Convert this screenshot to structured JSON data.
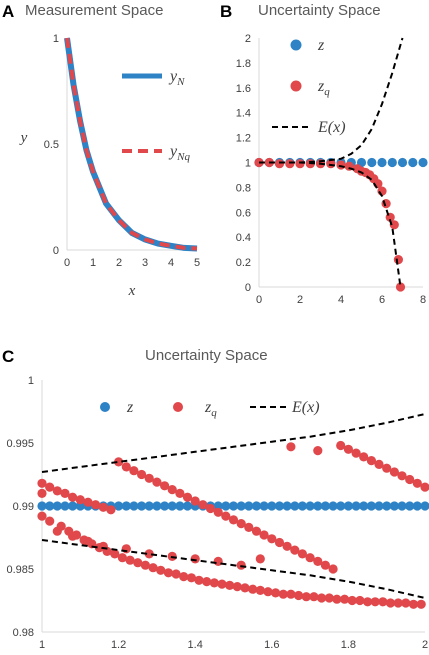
{
  "panels": {
    "A": {
      "label": "A",
      "title": "Measurement Space"
    },
    "B": {
      "label": "B",
      "title": "Uncertainty Space"
    },
    "C": {
      "label": "C",
      "title": "Uncertainty Space"
    }
  },
  "colors": {
    "z": "#2e83c6",
    "zq": "#e0484b",
    "E": "#000000"
  },
  "chart_data": [
    {
      "id": "A",
      "type": "line",
      "title": "Measurement Space",
      "xlabel": "x",
      "ylabel": "y",
      "xlim": [
        0,
        5
      ],
      "ylim": [
        0,
        1
      ],
      "xticks": [
        "0",
        "1",
        "2",
        "3",
        "4",
        "5"
      ],
      "yticks": [
        "0",
        "0.5",
        "1"
      ],
      "legend": "right",
      "series": [
        {
          "name": "y_N",
          "legend_main": "y",
          "legend_sub": "N",
          "style": "solid",
          "color": "#2e83c6",
          "x": [
            0,
            0.25,
            0.5,
            0.75,
            1,
            1.5,
            2,
            2.5,
            3,
            3.5,
            4,
            4.5,
            5
          ],
          "y": [
            1,
            0.78,
            0.61,
            0.47,
            0.37,
            0.22,
            0.14,
            0.08,
            0.05,
            0.03,
            0.02,
            0.01,
            0.007
          ]
        },
        {
          "name": "y_Nq",
          "legend_main": "y",
          "legend_sub": "Nq",
          "style": "dashed",
          "color": "#e0484b",
          "x": [
            0,
            0.25,
            0.5,
            0.75,
            1,
            1.5,
            2,
            2.5,
            3,
            3.5,
            4,
            4.5,
            5
          ],
          "y": [
            1,
            0.78,
            0.61,
            0.47,
            0.37,
            0.22,
            0.14,
            0.08,
            0.05,
            0.03,
            0.02,
            0.01,
            0.007
          ]
        }
      ]
    },
    {
      "id": "B",
      "type": "scatter",
      "title": "Uncertainty Space",
      "xlim": [
        0,
        8
      ],
      "ylim": [
        0,
        2
      ],
      "xticks": [
        "0",
        "2",
        "4",
        "6",
        "8"
      ],
      "yticks": [
        "0",
        "0.2",
        "0.4",
        "0.6",
        "0.8",
        "1",
        "1.2",
        "1.4",
        "1.6",
        "1.8",
        "2"
      ],
      "legend": "left",
      "series": [
        {
          "name": "z",
          "legend_main": "z",
          "legend_sub": "",
          "style": "marker",
          "color": "#2e83c6",
          "x": [
            0,
            0.5,
            1,
            1.5,
            2,
            2.5,
            3,
            3.5,
            4,
            4.5,
            5,
            5.5,
            6,
            6.5,
            7,
            7.5,
            8
          ],
          "y": [
            1,
            1,
            1,
            1,
            1,
            1,
            1,
            1,
            1,
            1,
            1,
            1,
            1,
            1,
            1,
            1,
            1
          ]
        },
        {
          "name": "z_q",
          "legend_main": "z",
          "legend_sub": "q",
          "style": "marker",
          "color": "#e0484b",
          "x": [
            0,
            0.5,
            1,
            1.5,
            2,
            2.5,
            3,
            3.5,
            4,
            4.4,
            4.8,
            5,
            5.2,
            5.4,
            5.6,
            5.8,
            6.0,
            6.2,
            6.4,
            6.6,
            6.8,
            6.9
          ],
          "y": [
            1,
            1,
            0.99,
            0.99,
            0.99,
            0.99,
            0.99,
            0.99,
            0.98,
            0.97,
            0.95,
            0.93,
            0.92,
            0.9,
            0.87,
            0.83,
            0.77,
            0.67,
            0.56,
            0.5,
            0.22,
            0.0
          ]
        },
        {
          "name": "E(x)",
          "legend_main": "E(x)",
          "legend_sub": "",
          "style": "dashed",
          "color": "#000000",
          "upper_x": [
            0,
            2,
            3,
            4,
            4.5,
            5,
            5.5,
            6,
            6.5,
            7
          ],
          "upper_y": [
            1.0,
            1.0,
            1.01,
            1.03,
            1.07,
            1.14,
            1.27,
            1.47,
            1.72,
            2.0
          ],
          "lower_x": [
            0,
            2,
            3,
            4,
            4.5,
            5,
            5.5,
            6,
            6.5,
            6.9
          ],
          "lower_y": [
            1.0,
            1.0,
            0.99,
            0.97,
            0.95,
            0.92,
            0.86,
            0.73,
            0.48,
            0.0
          ]
        }
      ]
    },
    {
      "id": "C",
      "type": "scatter",
      "title": "Uncertainty Space",
      "xlim": [
        1,
        2
      ],
      "ylim": [
        0.98,
        1
      ],
      "xticks": [
        "1",
        "1.2",
        "1.4",
        "1.6",
        "1.8",
        "2"
      ],
      "yticks": [
        "0.98",
        "0.985",
        "0.99",
        "0.995",
        "1"
      ],
      "legend": "top",
      "series": [
        {
          "name": "z",
          "legend_main": "z",
          "legend_sub": "",
          "style": "marker",
          "color": "#2e83c6",
          "x": [
            1.0,
            1.02,
            1.04,
            1.06,
            1.08,
            1.1,
            1.12,
            1.14,
            1.16,
            1.18,
            1.2,
            1.22,
            1.24,
            1.26,
            1.28,
            1.3,
            1.32,
            1.34,
            1.36,
            1.38,
            1.4,
            1.42,
            1.44,
            1.46,
            1.48,
            1.5,
            1.52,
            1.54,
            1.56,
            1.58,
            1.6,
            1.62,
            1.64,
            1.66,
            1.68,
            1.7,
            1.72,
            1.74,
            1.76,
            1.78,
            1.8,
            1.82,
            1.84,
            1.86,
            1.88,
            1.9,
            1.92,
            1.94,
            1.96,
            1.98,
            2.0
          ],
          "y": [
            0.99,
            0.99,
            0.99,
            0.99,
            0.99,
            0.99,
            0.99,
            0.99,
            0.99,
            0.99,
            0.99,
            0.99,
            0.99,
            0.99,
            0.99,
            0.99,
            0.99,
            0.99,
            0.99,
            0.99,
            0.99,
            0.99,
            0.99,
            0.99,
            0.99,
            0.99,
            0.99,
            0.99,
            0.99,
            0.99,
            0.99,
            0.99,
            0.99,
            0.99,
            0.99,
            0.99,
            0.99,
            0.99,
            0.99,
            0.99,
            0.99,
            0.99,
            0.99,
            0.99,
            0.99,
            0.99,
            0.99,
            0.99,
            0.99,
            0.99,
            0.99
          ]
        },
        {
          "name": "z_q",
          "legend_main": "z",
          "legend_sub": "q",
          "style": "marker",
          "color": "#e0484b",
          "x": [
            1.0,
            1.02,
            1.05,
            1.07,
            1.09,
            1.11,
            1.13,
            1.15,
            1.17,
            1.19,
            1.21,
            1.23,
            1.25,
            1.27,
            1.29,
            1.31,
            1.33,
            1.35,
            1.37,
            1.39,
            1.41,
            1.43,
            1.45,
            1.47,
            1.49,
            1.51,
            1.53,
            1.55,
            1.57,
            1.59,
            1.61,
            1.63,
            1.65,
            1.67,
            1.69,
            1.71,
            1.73,
            1.75,
            1.77,
            1.79,
            1.81,
            1.83,
            1.85,
            1.87,
            1.89,
            1.91,
            1.93,
            1.95,
            1.97,
            1.99,
            1.0,
            1.02,
            1.04,
            1.06,
            1.08,
            1.1,
            1.12,
            1.14,
            1.16,
            1.18,
            1.2,
            1.22,
            1.24,
            1.26,
            1.28,
            1.3,
            1.32,
            1.34,
            1.36,
            1.38,
            1.4,
            1.42,
            1.44,
            1.46,
            1.48,
            1.5,
            1.52,
            1.54,
            1.56,
            1.58,
            1.6,
            1.62,
            1.64,
            1.66,
            1.68,
            1.7,
            1.72,
            1.74,
            1.76,
            1.78,
            1.8,
            1.82,
            1.84,
            1.86,
            1.88,
            1.9,
            1.92,
            1.94,
            1.96,
            1.98,
            2.0,
            1.0,
            1.04,
            1.08,
            1.12,
            1.16,
            1.22,
            1.28,
            1.34,
            1.4,
            1.46,
            1.52,
            1.57,
            1.65,
            1.72
          ],
          "y": [
            0.9892,
            0.9888,
            0.9884,
            0.988,
            0.9877,
            0.9873,
            0.987,
            0.9867,
            0.9864,
            0.9862,
            0.9859,
            0.9857,
            0.9855,
            0.9853,
            0.9851,
            0.9849,
            0.9847,
            0.9846,
            0.9844,
            0.9843,
            0.9841,
            0.984,
            0.9839,
            0.9838,
            0.9837,
            0.9836,
            0.9835,
            0.9834,
            0.9833,
            0.9832,
            0.9831,
            0.983,
            0.983,
            0.9829,
            0.9828,
            0.9828,
            0.9827,
            0.9827,
            0.9826,
            0.9826,
            0.9825,
            0.9825,
            0.9824,
            0.9824,
            0.9824,
            0.9823,
            0.9823,
            0.9823,
            0.9822,
            0.9822,
            0.9918,
            0.9915,
            0.9912,
            0.991,
            0.9907,
            0.9905,
            0.9903,
            0.9901,
            0.9899,
            0.9897,
            0.9935,
            0.9931,
            0.9928,
            0.9925,
            0.9922,
            0.9919,
            0.9916,
            0.9913,
            0.991,
            0.9907,
            0.9904,
            0.9901,
            0.9898,
            0.9895,
            0.9892,
            0.9889,
            0.9886,
            0.9883,
            0.988,
            0.9877,
            0.9874,
            0.9871,
            0.9868,
            0.9865,
            0.9862,
            0.9859,
            0.9856,
            0.9853,
            0.985,
            0.9948,
            0.9945,
            0.9942,
            0.9939,
            0.9936,
            0.9933,
            0.993,
            0.9927,
            0.9924,
            0.9921,
            0.9918,
            0.9915,
            0.991,
            0.988,
            0.9876,
            0.9872,
            0.9868,
            0.9866,
            0.9862,
            0.986,
            0.9858,
            0.9856,
            0.9853,
            0.9858,
            0.9947,
            0.9944
          ]
        },
        {
          "name": "E(x)",
          "legend_main": "E(x)",
          "legend_sub": "",
          "style": "dashed",
          "color": "#000000",
          "upper_x": [
            1.0,
            1.1,
            1.2,
            1.3,
            1.4,
            1.5,
            1.6,
            1.7,
            1.8,
            1.9,
            2.0
          ],
          "upper_y": [
            0.9927,
            0.9931,
            0.9935,
            0.9939,
            0.9943,
            0.9947,
            0.9951,
            0.9955,
            0.996,
            0.9966,
            0.9973
          ],
          "lower_x": [
            1.0,
            1.1,
            1.2,
            1.3,
            1.4,
            1.5,
            1.6,
            1.7,
            1.8,
            1.9,
            2.0
          ],
          "lower_y": [
            0.9873,
            0.9869,
            0.9865,
            0.9861,
            0.9857,
            0.9853,
            0.9849,
            0.9845,
            0.984,
            0.9834,
            0.9827
          ]
        }
      ]
    }
  ]
}
